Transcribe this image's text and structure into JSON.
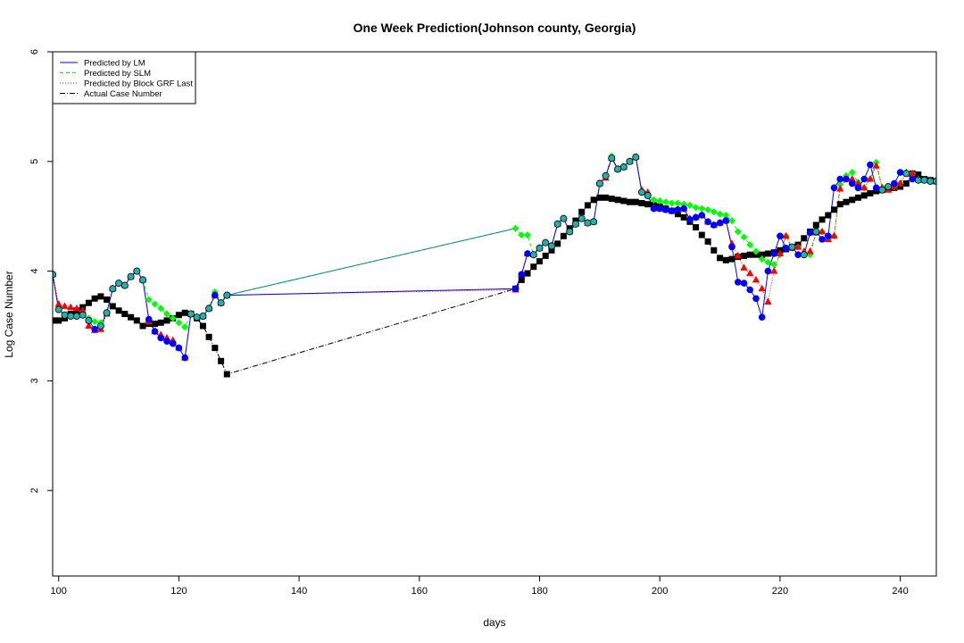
{
  "chart_data": {
    "type": "line",
    "title": "One Week Prediction(Johnson county, Georgia)",
    "xlabel": "days",
    "ylabel": "Log Case Number",
    "xlim": [
      99,
      246
    ],
    "ylim": [
      1.22,
      6.0
    ],
    "xticks": [
      100,
      120,
      140,
      160,
      180,
      200,
      220,
      240
    ],
    "yticks": [
      2,
      3,
      4,
      5,
      6
    ],
    "grid": false,
    "legend_position": "top-left",
    "legend": [
      {
        "label": "Predicted by LM",
        "color": "#0000ff",
        "dash": "none"
      },
      {
        "label": "Predicted by SLM",
        "color": "#00ff00",
        "dash": "4,3"
      },
      {
        "label": "Predicted by Block GRF Last",
        "color": "#ff0000",
        "dash": "1,2"
      },
      {
        "label": "Actual Case Number",
        "color": "#000000",
        "dash": "6,2,1,2"
      }
    ],
    "x": [
      99,
      100,
      101,
      102,
      103,
      104,
      105,
      106,
      107,
      108,
      109,
      110,
      111,
      112,
      113,
      114,
      115,
      116,
      117,
      118,
      119,
      120,
      121,
      122,
      123,
      124,
      125,
      126,
      127,
      128,
      176,
      177,
      178,
      179,
      180,
      181,
      182,
      183,
      184,
      185,
      186,
      187,
      188,
      189,
      190,
      191,
      192,
      193,
      194,
      195,
      196,
      197,
      198,
      199,
      200,
      201,
      202,
      203,
      204,
      205,
      206,
      207,
      208,
      209,
      210,
      211,
      212,
      213,
      214,
      215,
      216,
      217,
      218,
      219,
      220,
      221,
      222,
      223,
      224,
      225,
      226,
      227,
      228,
      229,
      230,
      231,
      232,
      233,
      234,
      235,
      236,
      237,
      238,
      239,
      240,
      241,
      242,
      243,
      244,
      245,
      246
    ],
    "series": [
      {
        "name": "Actual Case Number",
        "color": "#000000",
        "values": [
          3.55,
          3.55,
          3.57,
          3.61,
          3.64,
          3.67,
          3.71,
          3.75,
          3.77,
          3.74,
          3.68,
          3.64,
          3.61,
          3.58,
          3.55,
          3.5,
          3.52,
          3.52,
          3.53,
          3.55,
          3.57,
          3.6,
          3.62,
          3.61,
          3.57,
          3.5,
          3.4,
          3.3,
          3.18,
          3.06,
          3.84,
          3.92,
          3.98,
          4.04,
          4.09,
          4.14,
          4.19,
          4.25,
          4.32,
          4.39,
          4.46,
          4.54,
          4.6,
          4.65,
          4.67,
          4.67,
          4.66,
          4.65,
          4.64,
          4.63,
          4.63,
          4.62,
          4.61,
          4.6,
          4.59,
          4.57,
          4.55,
          4.52,
          4.49,
          4.45,
          4.4,
          4.33,
          4.27,
          4.19,
          4.12,
          4.1,
          4.11,
          4.13,
          4.14,
          4.15,
          4.15,
          4.15,
          4.16,
          4.17,
          4.19,
          4.2,
          4.22,
          4.24,
          4.3,
          4.36,
          4.42,
          4.47,
          4.51,
          4.56,
          4.61,
          4.63,
          4.65,
          4.67,
          4.69,
          4.71,
          4.73,
          4.74,
          4.75,
          4.76,
          4.77,
          4.8,
          4.89,
          4.88,
          4.84,
          4.83,
          4.82
        ]
      },
      {
        "name": "Predicted by SLM",
        "color": "#00ff00",
        "values": [
          3.97,
          3.65,
          3.6,
          3.59,
          3.59,
          3.6,
          3.57,
          3.54,
          3.53,
          3.62,
          3.84,
          3.89,
          3.87,
          3.95,
          4.0,
          3.92,
          3.74,
          3.7,
          3.66,
          3.61,
          3.57,
          3.53,
          3.49,
          3.61,
          3.58,
          3.59,
          3.66,
          3.81,
          3.71,
          3.78,
          4.39,
          4.33,
          4.33,
          4.15,
          4.21,
          4.26,
          4.23,
          4.43,
          4.48,
          4.36,
          4.43,
          4.48,
          4.44,
          4.45,
          4.79,
          4.87,
          5.05,
          4.93,
          4.95,
          5.0,
          5.04,
          4.72,
          4.69,
          4.65,
          4.64,
          4.63,
          4.62,
          4.62,
          4.61,
          4.6,
          4.58,
          4.57,
          4.56,
          4.54,
          4.52,
          4.51,
          4.46,
          4.36,
          4.31,
          4.24,
          4.18,
          4.11,
          4.08,
          4.06,
          4.15,
          4.32,
          4.21,
          4.22,
          4.15,
          4.15,
          4.35,
          4.36,
          4.29,
          4.32,
          4.79,
          4.87,
          4.9,
          4.81,
          4.76,
          4.84,
          4.99,
          4.76,
          4.76,
          4.77,
          4.8,
          4.9,
          4.89,
          4.84,
          4.83,
          4.83,
          4.82
        ]
      },
      {
        "name": "Predicted by Block GRF Last",
        "color": "#ff0000",
        "values": [
          3.97,
          3.7,
          3.68,
          3.67,
          3.66,
          3.64,
          3.5,
          3.46,
          3.47,
          3.61,
          3.84,
          3.89,
          3.87,
          3.95,
          4.0,
          3.92,
          3.54,
          3.45,
          3.42,
          3.39,
          3.37,
          3.3,
          3.21,
          3.61,
          3.58,
          3.59,
          3.66,
          3.78,
          3.71,
          3.78,
          3.83,
          3.97,
          4.16,
          4.15,
          4.21,
          4.26,
          4.23,
          4.43,
          4.48,
          4.36,
          4.43,
          4.48,
          4.44,
          4.45,
          4.8,
          4.85,
          5.03,
          4.93,
          4.95,
          5.0,
          5.04,
          4.74,
          4.72,
          4.58,
          4.57,
          4.56,
          4.55,
          4.56,
          4.57,
          4.48,
          4.49,
          4.51,
          4.45,
          4.42,
          4.44,
          4.46,
          4.25,
          4.14,
          4.03,
          3.98,
          3.92,
          3.84,
          3.72,
          4.0,
          4.16,
          4.32,
          4.21,
          4.22,
          4.18,
          4.18,
          4.35,
          4.36,
          4.29,
          4.32,
          4.75,
          4.84,
          4.84,
          4.8,
          4.76,
          4.84,
          4.96,
          4.76,
          4.74,
          4.77,
          4.8,
          4.9,
          4.89,
          4.84,
          4.83,
          4.83,
          4.82
        ]
      },
      {
        "name": "Predicted by LM",
        "color": "#0000ff",
        "values": [
          3.97,
          3.65,
          3.6,
          3.59,
          3.59,
          3.6,
          3.55,
          3.47,
          3.5,
          3.62,
          3.84,
          3.89,
          3.87,
          3.95,
          4.0,
          3.92,
          3.56,
          3.45,
          3.39,
          3.36,
          3.34,
          3.3,
          3.21,
          3.61,
          3.58,
          3.59,
          3.66,
          3.78,
          3.71,
          3.78,
          3.84,
          3.97,
          4.16,
          4.15,
          4.21,
          4.26,
          4.23,
          4.43,
          4.48,
          4.36,
          4.43,
          4.48,
          4.44,
          4.45,
          4.8,
          4.87,
          5.03,
          4.93,
          4.95,
          5.0,
          5.04,
          4.72,
          4.69,
          4.57,
          4.57,
          4.56,
          4.55,
          4.56,
          4.57,
          4.47,
          4.49,
          4.51,
          4.45,
          4.42,
          4.44,
          4.46,
          4.22,
          3.9,
          3.89,
          3.83,
          3.75,
          3.58,
          4.0,
          4.16,
          4.32,
          4.21,
          4.22,
          4.15,
          4.15,
          4.35,
          4.36,
          4.29,
          4.32,
          4.76,
          4.84,
          4.84,
          4.8,
          4.76,
          4.84,
          4.97,
          4.76,
          4.74,
          4.77,
          4.8,
          4.9,
          4.89,
          4.84,
          4.83,
          4.83,
          4.82,
          4.82
        ]
      }
    ]
  }
}
